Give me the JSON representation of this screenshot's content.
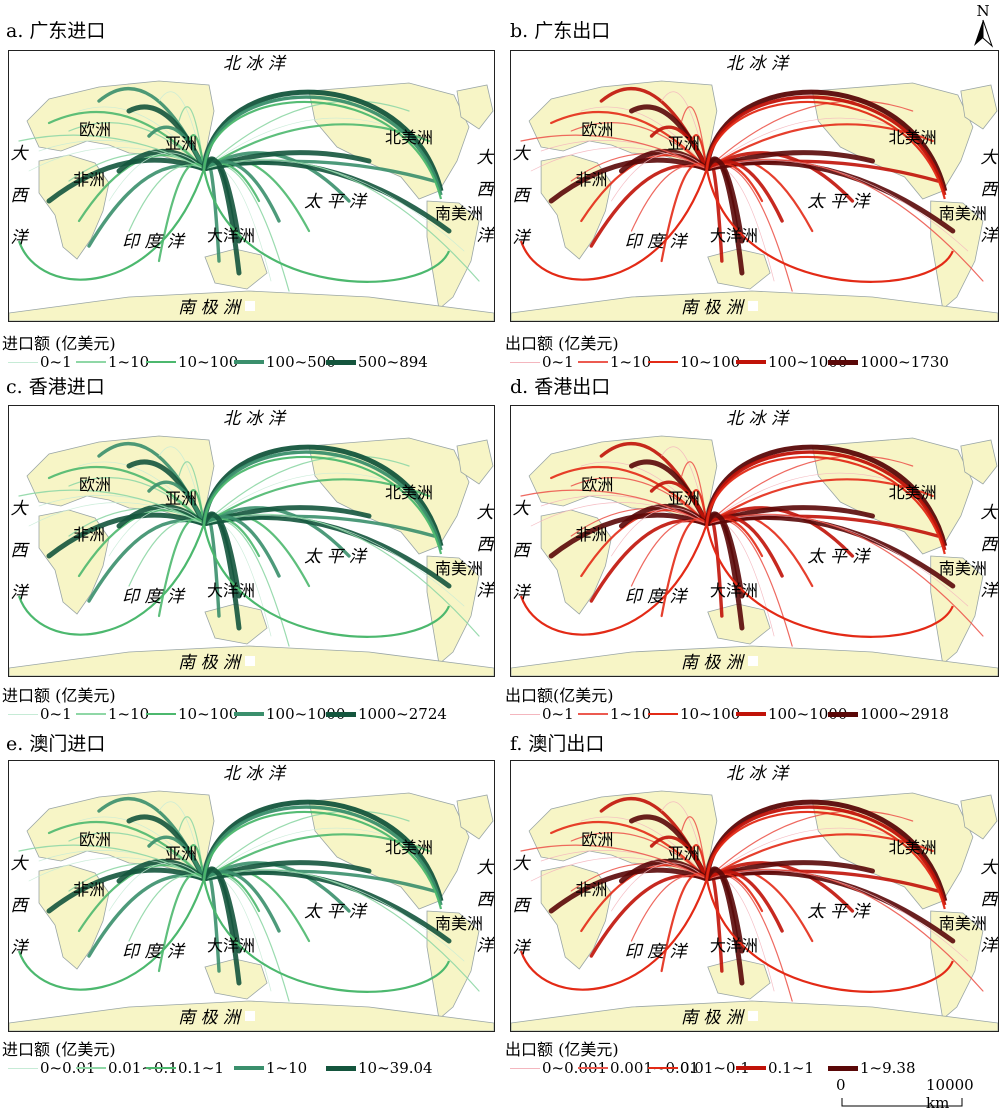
{
  "labels": {
    "arctic": "北 冰 洋",
    "europe": "欧洲",
    "asia": "亚洲",
    "africa": "非洲",
    "north_america": "北美洲",
    "south_america": "南美洲",
    "oceania": "大洋洲",
    "pacific": "太 平 洋",
    "indian": "印 度 洋",
    "antarctica": "南 极 洲",
    "atlantic_1": "大",
    "atlantic_2": "西",
    "atlantic_3": "洋"
  },
  "north_arrow_label": "N",
  "scale_bar": {
    "start": "0",
    "end": "10000 km"
  },
  "panels": [
    {
      "id": "a",
      "title": "a. 广东进口",
      "theme": "green",
      "legend_title": "进口额 (亿美元)",
      "legend": [
        "0~1",
        "1~10",
        "10~100",
        "100~500",
        "500~894"
      ]
    },
    {
      "id": "b",
      "title": "b. 广东出口",
      "theme": "red",
      "legend_title": "出口额 (亿美元)",
      "legend": [
        "0~1",
        "1~10",
        "10~100",
        "100~1000",
        "1000~1730"
      ]
    },
    {
      "id": "c",
      "title": "c. 香港进口",
      "theme": "green",
      "legend_title": "进口额 (亿美元)",
      "legend": [
        "0~1",
        "1~10",
        "10~100",
        "100~1000",
        "1000~2724"
      ]
    },
    {
      "id": "d",
      "title": "d. 香港出口",
      "theme": "red",
      "legend_title": "出口额(亿美元)",
      "legend": [
        "0~1",
        "1~10",
        "10~100",
        "100~1000",
        "1000~2918"
      ]
    },
    {
      "id": "e",
      "title": "e. 澳门进口",
      "theme": "green",
      "legend_title": "进口额 (亿美元)",
      "legend": [
        "0~0.01",
        "0.01~0.1",
        "0.1~1",
        "1~10",
        "10~39.04"
      ]
    },
    {
      "id": "f",
      "title": "f. 澳门出口",
      "theme": "red",
      "legend_title": "出口额 (亿美元)",
      "legend": [
        "0~0.001",
        "0.001~0.01",
        "0.01~0.1",
        "0.1~1",
        "1~9.38"
      ]
    }
  ],
  "colors": {
    "land": "#f7f5c6",
    "land_border": "#9aa6a6",
    "green_classes": [
      "#c6ebd6",
      "#8fd7a6",
      "#4cb86e",
      "#3a8f6c",
      "#14553d"
    ],
    "red_classes": [
      "#f4b6be",
      "#ec5a50",
      "#e32a16",
      "#c01208",
      "#5a0808"
    ]
  }
}
